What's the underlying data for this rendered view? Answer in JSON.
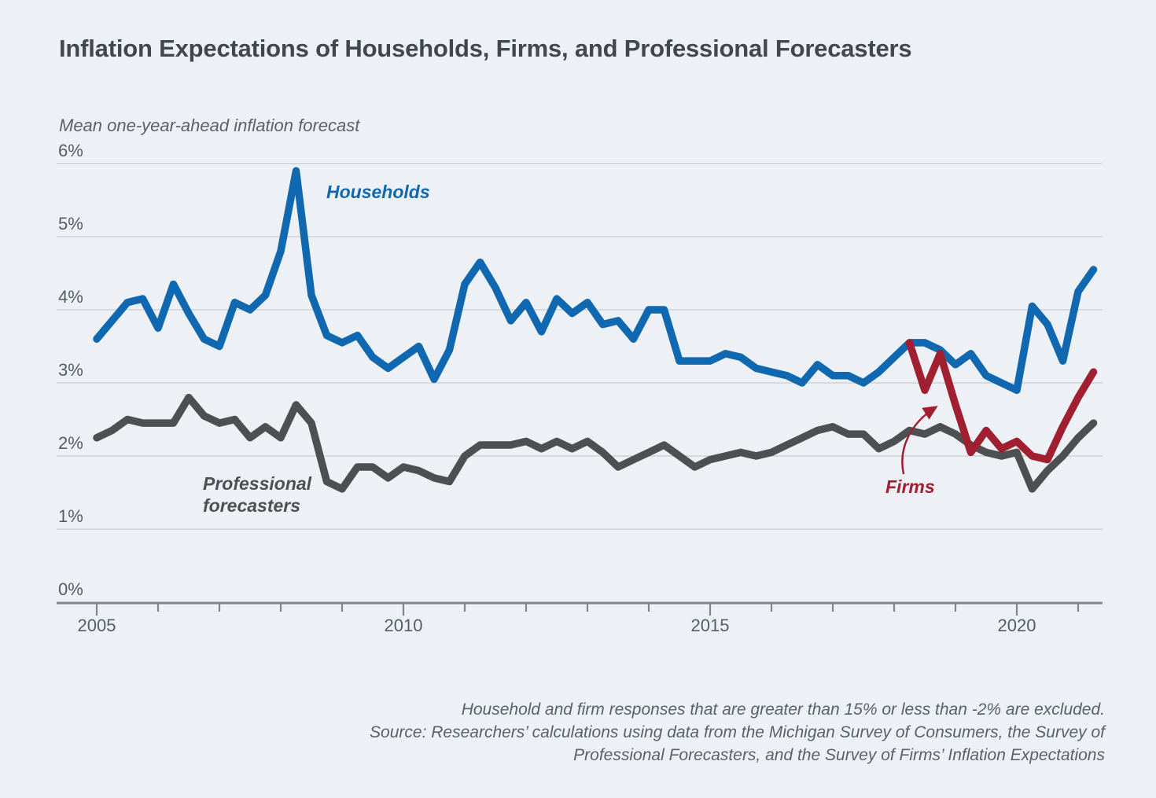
{
  "header": {
    "title": "Inflation Expectations of Households, Firms, and Professional Forecasters"
  },
  "colors": {
    "background": "#edf1f6",
    "grid": "#c8ccd1",
    "axis": "#81878e",
    "tick_text": "#565c62",
    "households": "#1068b0",
    "forecasters": "#4e4f51",
    "firms": "#a02032"
  },
  "chart_data": {
    "type": "line",
    "title": "Inflation Expectations of Households, Firms, and Professional Forecasters",
    "subtitle": "Mean one-year-ahead inflation forecast",
    "ylabel": "Mean one-year-ahead inflation forecast",
    "ylim": [
      0,
      6
    ],
    "grid": "horizontal",
    "legend_position": "inline-annotations",
    "y_axis": {
      "tick_values": [
        6,
        5,
        4,
        3,
        2,
        1,
        0
      ],
      "tick_labels": [
        "6%",
        "5%",
        "4%",
        "3%",
        "2%",
        "1%",
        "0%"
      ]
    },
    "x_axis": {
      "minor_tick_years": [
        2005,
        2006,
        2007,
        2008,
        2009,
        2010,
        2011,
        2012,
        2013,
        2014,
        2015,
        2016,
        2017,
        2018,
        2019,
        2020,
        2021
      ],
      "labeled_years": [
        2005,
        2010,
        2015,
        2020
      ],
      "tick_labels": [
        "2005",
        "2010",
        "2015",
        "2020"
      ],
      "frequency": "quarterly",
      "range": [
        2005.0,
        2021.25
      ]
    },
    "series": [
      {
        "name": "Households",
        "color": "#1068b0",
        "start_year": 2005,
        "start_quarter": 1,
        "values": [
          3.6,
          3.85,
          4.1,
          4.15,
          3.75,
          4.35,
          3.95,
          3.6,
          3.5,
          4.1,
          4.0,
          4.2,
          4.8,
          5.9,
          4.2,
          3.65,
          3.55,
          3.65,
          3.35,
          3.2,
          3.35,
          3.5,
          3.05,
          3.45,
          4.35,
          4.65,
          4.3,
          3.85,
          4.1,
          3.7,
          4.15,
          3.95,
          4.1,
          3.8,
          3.85,
          3.6,
          4.0,
          4.0,
          3.3,
          3.3,
          3.3,
          3.4,
          3.35,
          3.2,
          3.15,
          3.1,
          3.0,
          3.25,
          3.1,
          3.1,
          3.0,
          3.15,
          3.35,
          3.55,
          3.55,
          3.45,
          3.25,
          3.4,
          3.1,
          3.0,
          2.9,
          4.05,
          3.8,
          3.3,
          4.25,
          4.55
        ]
      },
      {
        "name": "Professional forecasters",
        "color": "#4e4f51",
        "start_year": 2005,
        "start_quarter": 1,
        "values": [
          2.25,
          2.35,
          2.5,
          2.45,
          2.45,
          2.45,
          2.8,
          2.55,
          2.45,
          2.5,
          2.25,
          2.4,
          2.25,
          2.7,
          2.45,
          1.65,
          1.55,
          1.85,
          1.85,
          1.7,
          1.85,
          1.8,
          1.7,
          1.65,
          2.0,
          2.15,
          2.15,
          2.15,
          2.2,
          2.1,
          2.2,
          2.1,
          2.2,
          2.05,
          1.85,
          1.95,
          2.05,
          2.15,
          2.0,
          1.85,
          1.95,
          2.0,
          2.05,
          2.0,
          2.05,
          2.15,
          2.25,
          2.35,
          2.4,
          2.3,
          2.3,
          2.1,
          2.2,
          2.35,
          2.3,
          2.4,
          2.3,
          2.15,
          2.05,
          2.0,
          2.05,
          1.55,
          1.8,
          2.0,
          2.25,
          2.45
        ]
      },
      {
        "name": "Firms",
        "color": "#a02032",
        "start_year": 2018,
        "start_quarter": 2,
        "values": [
          3.55,
          2.9,
          3.4,
          2.7,
          2.05,
          2.35,
          2.1,
          2.2,
          2.0,
          1.95,
          2.4,
          2.8,
          3.15
        ]
      }
    ],
    "annotations": {
      "households_label": "Households",
      "forecasters_label_line1": "Professional",
      "forecasters_label_line2": "forecasters",
      "firms_label": "Firms"
    }
  },
  "footer": {
    "lines": [
      "Household and firm responses that are greater than 15% or less than -2% are excluded.",
      "Source: Researchers’ calculations using data from the Michigan Survey of Consumers, the Survey of",
      "Professional Forecasters, and the Survey of Firms’ Inflation Expectations"
    ]
  }
}
